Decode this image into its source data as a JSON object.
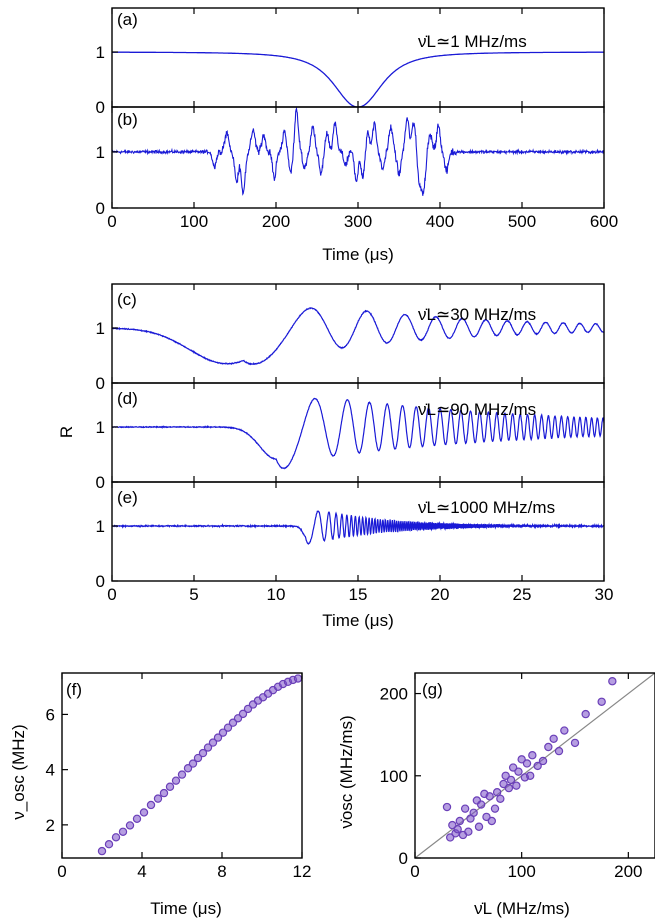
{
  "figure": {
    "colors": {
      "trace": "#1a1ad6",
      "marker": "#7a4fc9",
      "marker_edge": "#6a3fb8",
      "reference_line": "#888888",
      "axes": "#000000"
    }
  },
  "chart_data": [
    {
      "id": "a",
      "panel_label": "(a)",
      "type": "line",
      "annotation": "ν̇L≃1 MHz/ms",
      "xlim": [
        0,
        600
      ],
      "ylim": [
        0,
        1.8
      ],
      "xticks": [
        0,
        100,
        200,
        300,
        400,
        500,
        600
      ],
      "yticks": [
        0,
        1
      ],
      "shape": {
        "kind": "dip",
        "center": 300,
        "width": 42,
        "baseline": 1.0,
        "min": 0.0
      },
      "series": [
        {
          "x": [
            0,
            100,
            200,
            250,
            280,
            295,
            300,
            305,
            320,
            350,
            400,
            500,
            600
          ],
          "y": [
            1.0,
            0.99,
            0.93,
            0.79,
            0.42,
            0.06,
            0.0,
            0.06,
            0.3,
            0.62,
            0.86,
            0.97,
            1.0
          ]
        }
      ]
    },
    {
      "id": "b",
      "panel_label": "(b)",
      "type": "line",
      "xlim": [
        0,
        600
      ],
      "ylim": [
        0,
        1.8
      ],
      "xticks": [
        0,
        100,
        200,
        300,
        400,
        500,
        600
      ],
      "xticklabels": [
        "0",
        "100",
        "200",
        "300",
        "400",
        "500",
        "600"
      ],
      "yticks": [
        0,
        1
      ],
      "xlabel": "Time (μs)",
      "shape": {
        "kind": "noisy",
        "baseline": 1.0,
        "noise": 0.04,
        "active_range": [
          120,
          420
        ]
      },
      "series": [
        {
          "x": [
            0,
            120,
            160,
            225,
            230,
            300,
            310,
            370,
            380,
            420,
            600
          ],
          "y": [
            1.0,
            1.0,
            0.3,
            1.7,
            1.0,
            0.45,
            1.5,
            1.6,
            0.35,
            1.0,
            1.0
          ]
        }
      ]
    },
    {
      "id": "c",
      "panel_label": "(c)",
      "type": "line",
      "annotation": "ν̇L≃30 MHz/ms",
      "xlim": [
        0,
        30
      ],
      "ylim": [
        0,
        1.8
      ],
      "xticks": [
        0,
        5,
        10,
        15,
        20,
        25,
        30
      ],
      "yticks": [
        0,
        1
      ],
      "shape": {
        "kind": "chirp",
        "t0": 8.0,
        "tmin": 7.0,
        "depth": 0.65,
        "dipwidth": 3.2,
        "amp": 0.42,
        "T1": 4.5,
        "decay": 10.0,
        "tpeak": 12.4,
        "ramp": 1.0,
        "noise": 0.012
      },
      "series": [
        {
          "x": [
            0,
            7,
            10,
            12.4,
            14,
            17,
            25,
            30
          ],
          "y": [
            1.0,
            0.35,
            0.6,
            1.42,
            0.75,
            1.28,
            1.02,
            1.0
          ]
        }
      ]
    },
    {
      "id": "d",
      "panel_label": "(d)",
      "type": "line",
      "annotation": "ν̇L≃90 MHz/ms",
      "xlim": [
        0,
        30
      ],
      "ylim": [
        0,
        1.8
      ],
      "xticks": [
        0,
        5,
        10,
        15,
        20,
        25,
        30
      ],
      "yticks": [
        0,
        1
      ],
      "ylabel": "R",
      "shape": {
        "kind": "chirp",
        "t0": 10.0,
        "tmin": 10.0,
        "depth": 0.58,
        "dipwidth": 1.4,
        "amp": 0.56,
        "T1": 2.6,
        "decay": 14.0,
        "tpeak": 12.6,
        "ramp": 0.6,
        "noise": 0.012
      },
      "series": [
        {
          "x": [
            0,
            10,
            12.6,
            14,
            20,
            30
          ],
          "y": [
            1.0,
            0.42,
            1.55,
            0.58,
            1.1,
            1.0
          ]
        }
      ]
    },
    {
      "id": "e",
      "panel_label": "(e)",
      "type": "line",
      "annotation": "ν̇L≃1000 MHz/ms",
      "xlim": [
        0,
        30
      ],
      "ylim": [
        0,
        1.8
      ],
      "xticks": [
        0,
        5,
        10,
        15,
        20,
        25,
        30
      ],
      "xticklabels": [
        "0",
        "5",
        "10",
        "15",
        "20",
        "25",
        "30"
      ],
      "yticks": [
        0,
        1
      ],
      "xlabel": "Time (μs)",
      "shape": {
        "kind": "chirp",
        "t0": 11.8,
        "tmin": 11.9,
        "depth": 0.22,
        "dipwidth": 0.35,
        "amp": 0.3,
        "T1": 0.85,
        "decay": 4.5,
        "tpeak": 12.5,
        "ramp": 0.25,
        "noise": 0.018
      },
      "series": [
        {
          "x": [
            0,
            11.9,
            12.5,
            13,
            16,
            30
          ],
          "y": [
            1.0,
            0.78,
            1.3,
            0.8,
            1.05,
            1.0
          ]
        }
      ]
    },
    {
      "id": "f",
      "panel_label": "(f)",
      "type": "scatter",
      "xlabel": "Time (μs)",
      "ylabel": "ν_osc (MHz)",
      "xlim": [
        0,
        12
      ],
      "ylim": [
        0.8,
        7.5
      ],
      "xticks": [
        0,
        4,
        8,
        12
      ],
      "yticks": [
        2,
        4,
        6
      ],
      "x": [
        2.0,
        2.35,
        2.7,
        3.05,
        3.4,
        3.75,
        4.1,
        4.45,
        4.8,
        5.1,
        5.4,
        5.7,
        6.0,
        6.3,
        6.55,
        6.8,
        7.05,
        7.3,
        7.55,
        7.8,
        8.05,
        8.3,
        8.55,
        8.8,
        9.05,
        9.3,
        9.55,
        9.8,
        10.05,
        10.3,
        10.55,
        10.8,
        11.05,
        11.3,
        11.55,
        11.8
      ],
      "y": [
        1.05,
        1.3,
        1.55,
        1.75,
        1.98,
        2.22,
        2.45,
        2.72,
        2.95,
        3.15,
        3.38,
        3.6,
        3.82,
        4.05,
        4.22,
        4.42,
        4.6,
        4.8,
        4.98,
        5.16,
        5.34,
        5.52,
        5.7,
        5.86,
        6.02,
        6.2,
        6.36,
        6.5,
        6.62,
        6.75,
        6.88,
        7.0,
        7.1,
        7.18,
        7.25,
        7.3
      ]
    },
    {
      "id": "g",
      "panel_label": "(g)",
      "type": "scatter",
      "xlabel": "ν̇L (MHz/ms)",
      "ylabel": "ν̇osc (MHz/ms)",
      "xlim": [
        0,
        225
      ],
      "ylim": [
        0,
        225
      ],
      "xticks": [
        0,
        100,
        200
      ],
      "yticks": [
        0,
        100,
        200
      ],
      "reference_line": "y=x",
      "x": [
        30,
        33,
        35,
        38,
        40,
        42,
        45,
        47,
        50,
        52,
        55,
        58,
        60,
        62,
        65,
        67,
        70,
        72,
        75,
        77,
        80,
        83,
        85,
        88,
        90,
        92,
        95,
        97,
        100,
        103,
        105,
        108,
        110,
        115,
        120,
        125,
        130,
        135,
        140,
        150,
        160,
        175,
        185
      ],
      "y": [
        62,
        25,
        40,
        30,
        35,
        45,
        28,
        60,
        32,
        48,
        55,
        70,
        38,
        65,
        78,
        50,
        75,
        45,
        60,
        80,
        72,
        90,
        100,
        85,
        95,
        110,
        88,
        105,
        120,
        98,
        115,
        100,
        125,
        112,
        118,
        135,
        145,
        130,
        155,
        140,
        175,
        190,
        215
      ]
    }
  ]
}
